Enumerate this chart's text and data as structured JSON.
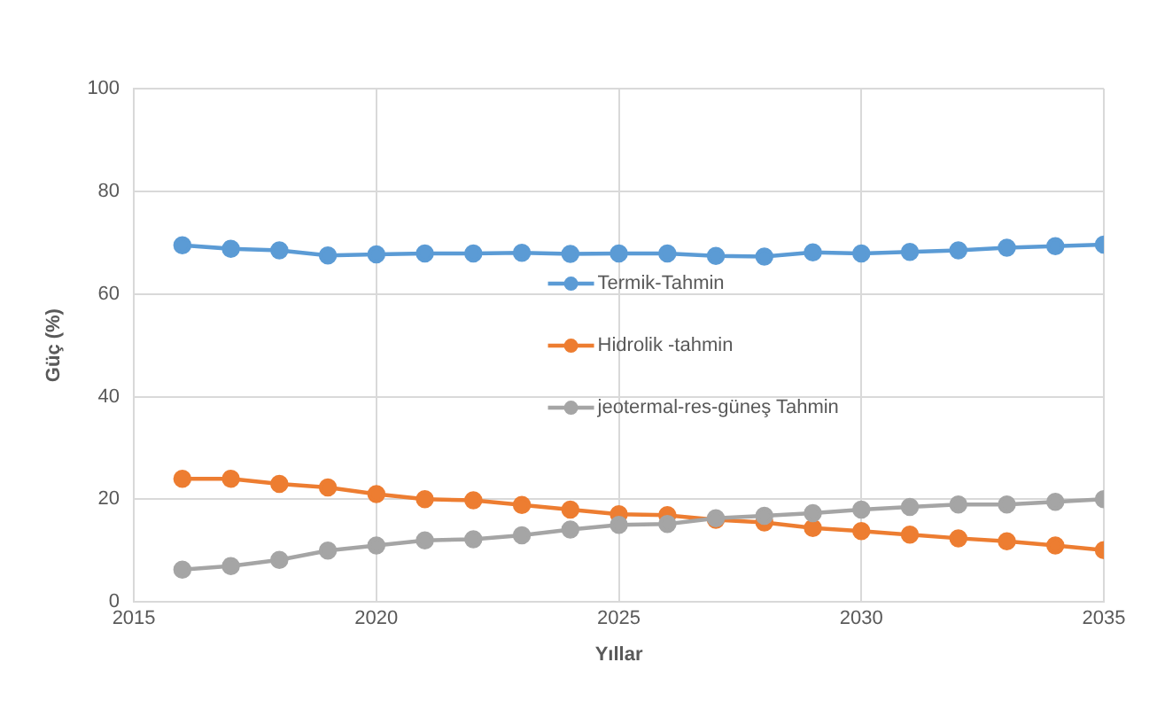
{
  "chart_data": {
    "type": "line",
    "xlabel": "Yıllar",
    "ylabel": "Güç (%)",
    "x": [
      2016,
      2017,
      2018,
      2019,
      2020,
      2021,
      2022,
      2023,
      2024,
      2025,
      2026,
      2027,
      2028,
      2029,
      2030,
      2031,
      2032,
      2033,
      2034,
      2035
    ],
    "series": [
      {
        "name": "Termik-Tahmin",
        "color": "#5b9bd5",
        "values": [
          69.5,
          68.8,
          68.5,
          67.5,
          67.7,
          67.9,
          67.9,
          68,
          67.8,
          67.9,
          67.9,
          67.4,
          67.3,
          68.1,
          67.9,
          68.2,
          68.5,
          69,
          69.3,
          69.6
        ]
      },
      {
        "name": "Hidrolik -tahmin",
        "color": "#ed7d31",
        "values": [
          24,
          24,
          23,
          22.3,
          21,
          20,
          19.8,
          18.9,
          18,
          17.1,
          16.9,
          16,
          15.5,
          14.4,
          13.8,
          13.1,
          12.4,
          11.8,
          11,
          10.1
        ]
      },
      {
        "name": "jeotermal-res-güneş Tahmin",
        "color": "#a5a5a5",
        "values": [
          6.3,
          7,
          8.2,
          10,
          11,
          12,
          12.2,
          13,
          14.1,
          15,
          15.2,
          16.3,
          16.8,
          17.3,
          18,
          18.5,
          19,
          19,
          19.5,
          20
        ]
      }
    ],
    "xlim": [
      2015,
      2035
    ],
    "xticks": [
      2015,
      2020,
      2025,
      2030,
      2035
    ],
    "ylim": [
      0,
      100
    ],
    "yticks": [
      0,
      20,
      40,
      60,
      80,
      100
    ],
    "grid": true,
    "legend": "center",
    "marker": "circle",
    "line_style": "solid"
  }
}
